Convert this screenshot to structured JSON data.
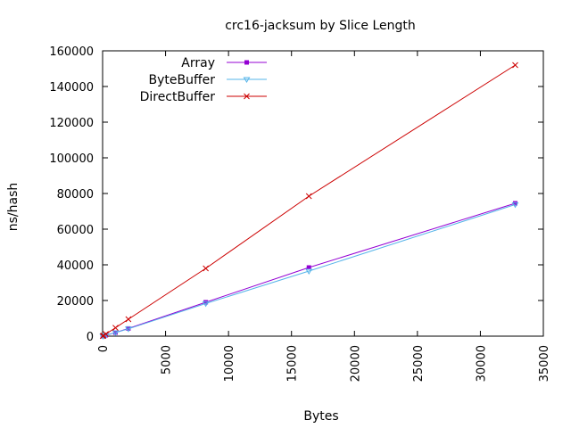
{
  "chart_data": {
    "type": "line",
    "title": "crc16-jacksum by Slice Length",
    "xlabel": "Bytes",
    "ylabel": "ns/hash",
    "xlim": [
      0,
      35000
    ],
    "ylim": [
      0,
      160000
    ],
    "xticks": [
      0,
      5000,
      10000,
      15000,
      20000,
      25000,
      30000,
      35000
    ],
    "yticks": [
      0,
      20000,
      40000,
      60000,
      80000,
      100000,
      120000,
      140000,
      160000
    ],
    "grid": false,
    "legend_position": "top-left",
    "series": [
      {
        "name": "Array",
        "color": "#9400d3",
        "marker": "square",
        "x": [
          16,
          64,
          256,
          1024,
          2048,
          8192,
          16384,
          32768
        ],
        "y": [
          50,
          150,
          500,
          2000,
          4300,
          19000,
          38500,
          74500
        ]
      },
      {
        "name": "ByteBuffer",
        "color": "#56b4e9",
        "marker": "triangle-down",
        "x": [
          16,
          64,
          256,
          1024,
          2048,
          8192,
          16384,
          32768
        ],
        "y": [
          50,
          150,
          500,
          2000,
          4100,
          18300,
          36500,
          73800
        ]
      },
      {
        "name": "DirectBuffer",
        "color": "#cc0000",
        "marker": "x",
        "x": [
          16,
          64,
          256,
          1024,
          2048,
          8192,
          16384,
          32768
        ],
        "y": [
          80,
          300,
          1200,
          4700,
          9500,
          38000,
          78500,
          152000
        ]
      }
    ]
  }
}
